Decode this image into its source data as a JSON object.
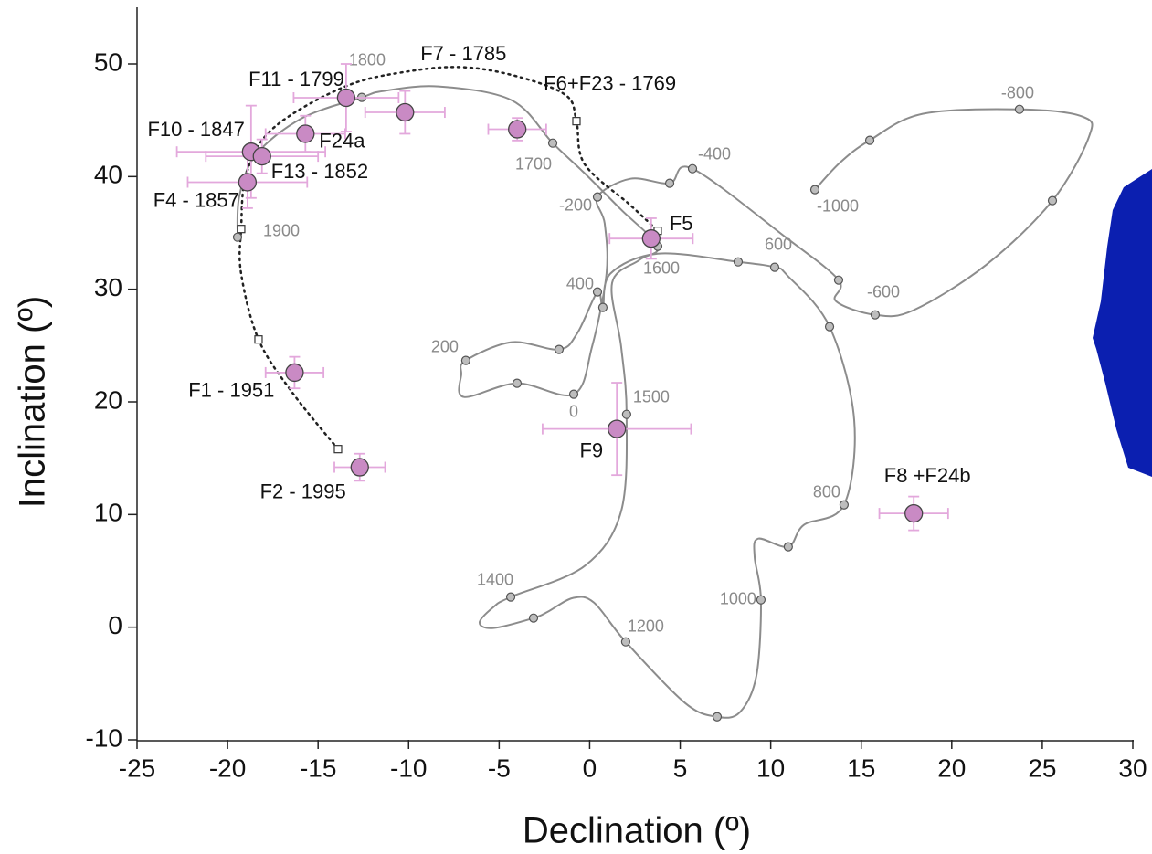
{
  "chart_data": {
    "type": "scatter",
    "xlabel": "Declination (º)",
    "ylabel": "Inclination (º)",
    "xlim": [
      -25,
      30
    ],
    "ylim": [
      -10,
      55
    ],
    "xticks": [
      -25,
      -20,
      -15,
      -10,
      -5,
      0,
      5,
      10,
      15,
      20,
      25,
      30
    ],
    "yticks": [
      -10,
      0,
      10,
      20,
      30,
      40,
      50
    ],
    "model_curve": {
      "color": "#8c8c8c",
      "x": [
        12.44,
        13.85,
        15.47,
        18.39,
        23.74,
        27.22,
        27.58,
        25.56,
        21.92,
        17.89,
        15.77,
        13.6,
        13.75,
        10.82,
        5.68,
        4.42,
        2.25,
        0.43,
        0.83,
        0.93,
        0.13,
        -0.88,
        -4.01,
        -6.94,
        -7.09,
        -6.84,
        -4.31,
        -1.69,
        -0.68,
        0.43,
        0.73,
        1.14,
        3.76,
        8.2,
        10.22,
        10.92,
        13.25,
        14.61,
        14.05,
        11.83,
        10.97,
        9.31,
        9.11,
        9.46,
        9.21,
        8.3,
        7.04,
        5.27,
        1.99,
        0.23,
        -0.93,
        -2.3,
        -3.1,
        -5.32,
        -6.08,
        -5.32,
        -4.36,
        -0.28,
        1.74,
        2.04,
        1.74,
        1.24,
        2.75,
        3.76,
        1.74,
        -0.28,
        -2.04,
        -4.31,
        -8.35,
        -11.38,
        -12.59,
        -15.92,
        -18.44,
        -19.35,
        -19.45
      ],
      "y": [
        38.84,
        41.27,
        43.22,
        45.57,
        45.97,
        45.32,
        43.54,
        37.87,
        32.19,
        28.14,
        27.73,
        28.95,
        30.81,
        34.62,
        40.7,
        39.41,
        39.81,
        38.19,
        35.84,
        31.38,
        24.89,
        20.68,
        21.65,
        20.43,
        22.46,
        23.68,
        25.3,
        24.65,
        26.11,
        29.76,
        28.38,
        31.38,
        33.16,
        32.43,
        31.95,
        31.22,
        26.68,
        18.41,
        10.86,
        9.08,
        7.14,
        7.86,
        6.24,
        2.43,
        -4.3,
        -7.54,
        -7.95,
        -6.73,
        -1.3,
        2.19,
        2.59,
        1.38,
        0.81,
        -0.08,
        0.41,
        1.78,
        2.68,
        5.43,
        10.3,
        18.89,
        24.89,
        30.57,
        32.6,
        33.81,
        37.06,
        40.3,
        42.97,
        46.78,
        48.0,
        47.6,
        47.03,
        45.16,
        41.92,
        38.27,
        34.62
      ]
    },
    "model_nodes": {
      "color": "#bdbdbd",
      "x": [
        12.44,
        15.47,
        23.74,
        25.56,
        13.75,
        15.77,
        5.68,
        4.42,
        0.43,
        -0.88,
        -4.01,
        -6.84,
        -1.69,
        0.43,
        0.73,
        8.2,
        10.22,
        13.25,
        14.05,
        10.97,
        9.46,
        7.04,
        1.99,
        -3.1,
        -4.36,
        2.04,
        3.76,
        -2.04,
        -12.59,
        -19.45
      ],
      "y": [
        38.84,
        43.22,
        45.97,
        37.87,
        30.81,
        27.73,
        40.7,
        39.41,
        38.19,
        20.68,
        21.65,
        23.68,
        24.65,
        29.76,
        28.38,
        32.43,
        31.95,
        26.68,
        10.86,
        7.14,
        2.43,
        -7.95,
        -1.3,
        0.81,
        2.68,
        18.89,
        33.81,
        42.97,
        47.03,
        34.62
      ],
      "labels": [
        "-1000",
        null,
        "-800",
        null,
        null,
        "-600",
        "-400",
        null,
        "-200",
        "0",
        null,
        "200",
        null,
        "400",
        null,
        null,
        "600",
        null,
        "800",
        null,
        "1000",
        null,
        "1200",
        null,
        "1400",
        "1500",
        "1600",
        "1700",
        "1800",
        "1900"
      ]
    },
    "dotted_curve": {
      "color": "#222222",
      "x": [
        -13.9,
        -16.43,
        -18.29,
        -19.25,
        -19.25,
        -18.95,
        -17.44,
        -13.5,
        -9.86,
        -6.84,
        -3.81,
        -1.29,
        -0.73,
        -0.28,
        2.25,
        3.76
      ],
      "y": [
        15.81,
        20.84,
        25.54,
        31.38,
        35.35,
        40.3,
        44.35,
        48.0,
        49.38,
        49.7,
        48.81,
        47.19,
        44.92,
        41.11,
        37.46,
        35.19
      ]
    },
    "dotted_markers": {
      "x": [
        -13.9,
        -18.29,
        -19.25,
        -0.73,
        3.76
      ],
      "y": [
        15.81,
        25.54,
        35.35,
        44.92,
        35.19
      ]
    },
    "samples": {
      "color": "#c98ac4",
      "error_color": "#e3a8dc",
      "labels": [
        "F11 - 1799",
        "F7 - 1785",
        "F6+F23 - 1769",
        "F24a",
        "F10 - 1847",
        "F13 - 1852",
        "F4 - 1857",
        "F5",
        "F1 - 1951",
        "F2 - 1995",
        "F9",
        "F8 +F24b"
      ],
      "x": [
        -13.45,
        -10.2,
        -4.0,
        -15.7,
        -18.7,
        -18.1,
        -18.9,
        3.4,
        -16.3,
        -12.7,
        1.5,
        17.9
      ],
      "y": [
        47.0,
        45.7,
        44.2,
        43.8,
        42.2,
        41.8,
        39.5,
        34.5,
        22.6,
        14.2,
        17.6,
        10.1
      ],
      "xerr": [
        2.9,
        2.2,
        1.6,
        2.2,
        4.1,
        3.1,
        3.3,
        2.3,
        1.6,
        1.4,
        4.1,
        1.9
      ],
      "yerr": [
        3.0,
        1.9,
        1.0,
        1.6,
        4.1,
        1.5,
        2.3,
        1.8,
        1.4,
        1.2,
        4.1,
        1.5
      ]
    }
  }
}
